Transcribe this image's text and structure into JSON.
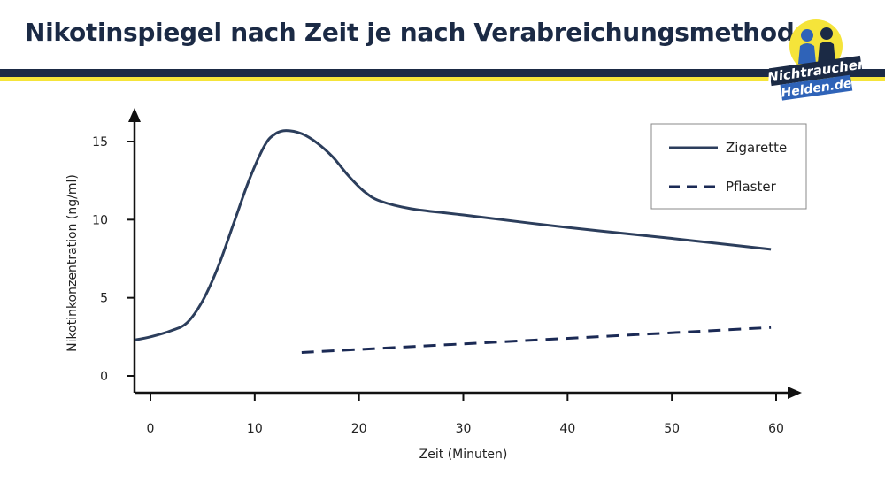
{
  "header": {
    "title": "Nikotinspiegel nach Zeit je nach Verabreichungsmethode",
    "logo_line1": "Nichtraucher",
    "logo_line2": "Helden.de"
  },
  "colors": {
    "navy": "#1b2a45",
    "yellow": "#f5e43a",
    "line_zigarette": "#2c3e5c",
    "line_pflaster": "#1b2a55",
    "logo_blue": "#2f63b8"
  },
  "chart_data": {
    "type": "line",
    "xlabel": "Zeit (Minuten)",
    "ylabel": "Nikotinkonzentration (ng/ml)",
    "xlim": [
      -1.5,
      62.5
    ],
    "ylim": [
      -1,
      17.5
    ],
    "x_ticks": [
      0,
      10,
      20,
      30,
      40,
      50,
      60
    ],
    "y_ticks": [
      0,
      5,
      10,
      15
    ],
    "grid": false,
    "legend": "top-right",
    "series": [
      {
        "name": "Zigarette",
        "style": "solid",
        "x": [
          -1.5,
          0,
          2,
          3.5,
          5,
          6.5,
          8,
          9.5,
          11,
          12,
          13,
          14.5,
          16,
          17.5,
          19,
          20.5,
          22,
          25,
          30,
          40,
          50,
          59.5
        ],
        "y": [
          2.3,
          2.5,
          2.9,
          3.4,
          4.8,
          7.0,
          9.8,
          12.6,
          14.8,
          15.5,
          15.7,
          15.5,
          14.9,
          14.0,
          12.8,
          11.8,
          11.2,
          10.7,
          10.3,
          9.5,
          8.8,
          8.1
        ]
      },
      {
        "name": "Pflaster",
        "style": "dashed",
        "x": [
          14.5,
          59.5
        ],
        "y": [
          1.5,
          3.1
        ]
      }
    ]
  }
}
